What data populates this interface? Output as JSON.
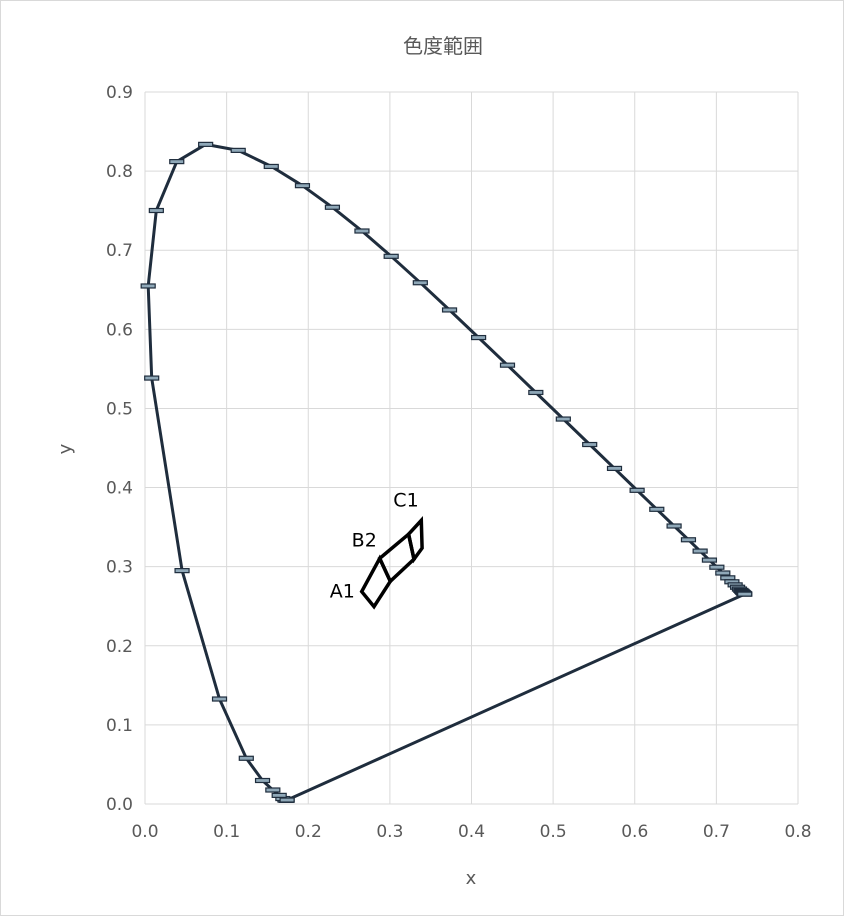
{
  "chart_data": {
    "type": "scatter",
    "title": "色度範囲",
    "xlabel": "x",
    "ylabel": "y",
    "xlim": [
      0.0,
      0.8
    ],
    "ylim": [
      0.0,
      0.9
    ],
    "x_ticks": [
      "0.0",
      "0.1",
      "0.2",
      "0.3",
      "0.4",
      "0.5",
      "0.6",
      "0.7",
      "0.8"
    ],
    "y_ticks": [
      "0.0",
      "0.1",
      "0.2",
      "0.3",
      "0.4",
      "0.5",
      "0.6",
      "0.7",
      "0.8",
      "0.9"
    ],
    "grid": true,
    "legend": "none",
    "series": [
      {
        "color": "#1f2d3d",
        "points": [
          [
            0.1741,
            0.005
          ],
          [
            0.1738,
            0.0049
          ],
          [
            0.1733,
            0.0048
          ],
          [
            0.1726,
            0.0048
          ],
          [
            0.1714,
            0.0051
          ],
          [
            0.1689,
            0.0069
          ],
          [
            0.1644,
            0.0109
          ],
          [
            0.1566,
            0.0177
          ],
          [
            0.144,
            0.0297
          ],
          [
            0.1241,
            0.0578
          ],
          [
            0.0913,
            0.1327
          ],
          [
            0.0454,
            0.295
          ],
          [
            0.0082,
            0.5384
          ],
          [
            0.0039,
            0.6548
          ],
          [
            0.0139,
            0.7502
          ],
          [
            0.0389,
            0.812
          ],
          [
            0.0743,
            0.8338
          ],
          [
            0.1142,
            0.8262
          ],
          [
            0.1547,
            0.8059
          ],
          [
            0.1929,
            0.7816
          ],
          [
            0.2296,
            0.7543
          ],
          [
            0.2658,
            0.7243
          ],
          [
            0.3016,
            0.6923
          ],
          [
            0.3373,
            0.6589
          ],
          [
            0.3731,
            0.6245
          ],
          [
            0.4087,
            0.5896
          ],
          [
            0.4441,
            0.5547
          ],
          [
            0.4788,
            0.5202
          ],
          [
            0.5125,
            0.4866
          ],
          [
            0.5448,
            0.4544
          ],
          [
            0.5752,
            0.4242
          ],
          [
            0.6029,
            0.3965
          ],
          [
            0.627,
            0.3725
          ],
          [
            0.6482,
            0.3514
          ],
          [
            0.6658,
            0.334
          ],
          [
            0.6801,
            0.3197
          ],
          [
            0.6915,
            0.3083
          ],
          [
            0.7006,
            0.2993
          ],
          [
            0.7079,
            0.292
          ],
          [
            0.714,
            0.2859
          ],
          [
            0.719,
            0.2809
          ],
          [
            0.723,
            0.277
          ],
          [
            0.726,
            0.274
          ],
          [
            0.7283,
            0.2717
          ],
          [
            0.73,
            0.27
          ],
          [
            0.7311,
            0.2689
          ],
          [
            0.732,
            0.268
          ],
          [
            0.7327,
            0.2673
          ],
          [
            0.7334,
            0.2666
          ],
          [
            0.734,
            0.266
          ],
          [
            0.7344,
            0.2656
          ],
          [
            0.7347,
            0.2653
          ],
          [
            0.7347,
            0.2653
          ],
          [
            0.1741,
            0.005
          ]
        ]
      }
    ],
    "regions": [
      {
        "name": "A1",
        "points": [
          [
            0.2805,
            0.2495
          ],
          [
            0.2655,
            0.2685
          ],
          [
            0.2875,
            0.3105
          ],
          [
            0.3005,
            0.2815
          ]
        ]
      },
      {
        "name": "B2",
        "points": [
          [
            0.3005,
            0.2815
          ],
          [
            0.2875,
            0.3105
          ],
          [
            0.323,
            0.341
          ],
          [
            0.3295,
            0.3095
          ]
        ]
      },
      {
        "name": "C1",
        "points": [
          [
            0.3295,
            0.3095
          ],
          [
            0.323,
            0.341
          ],
          [
            0.3385,
            0.3585
          ],
          [
            0.3395,
            0.3235
          ]
        ]
      }
    ],
    "annotations": [
      "A1",
      "B2",
      "C1"
    ]
  }
}
